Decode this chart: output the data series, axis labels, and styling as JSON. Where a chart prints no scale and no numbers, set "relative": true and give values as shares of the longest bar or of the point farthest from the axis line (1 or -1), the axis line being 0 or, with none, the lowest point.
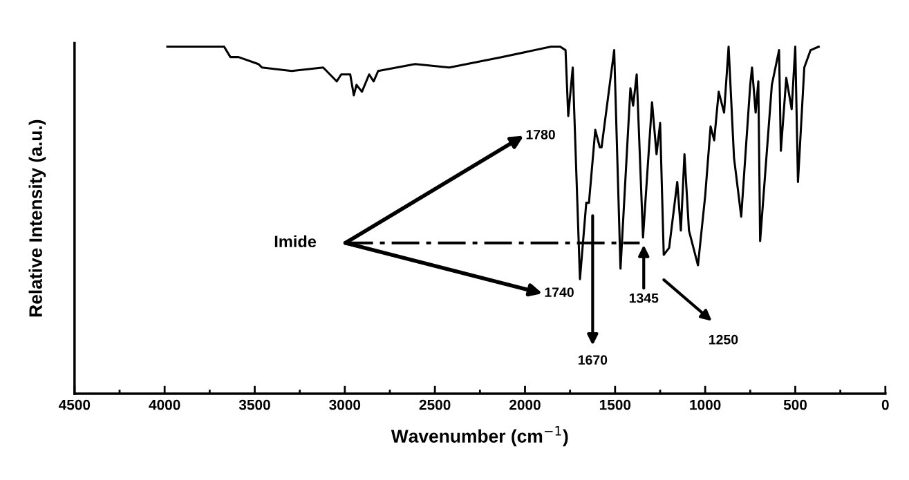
{
  "chart_data": {
    "type": "line",
    "relative": true,
    "xlabel": "Wavenumber (cm$^{−1}$)",
    "ylabel": "Relative Intensity (a.u.)",
    "xlim": [
      4500,
      0
    ],
    "xticks": [
      4500,
      4000,
      3500,
      3000,
      2500,
      2000,
      1500,
      1000,
      500,
      0
    ],
    "grid": false,
    "marker": "none",
    "line_style": "solid",
    "x": [
      3985,
      3670,
      3635,
      3590,
      3480,
      3460,
      3295,
      3120,
      3045,
      3020,
      2970,
      2950,
      2935,
      2905,
      2865,
      2840,
      2815,
      2610,
      2420,
      2130,
      1855,
      1805,
      1775,
      1760,
      1735,
      1695,
      1660,
      1645,
      1610,
      1585,
      1575,
      1505,
      1470,
      1415,
      1400,
      1380,
      1345,
      1295,
      1270,
      1250,
      1230,
      1200,
      1155,
      1135,
      1115,
      1090,
      1040,
      1000,
      970,
      950,
      925,
      895,
      870,
      840,
      800,
      750,
      740,
      720,
      705,
      695,
      630,
      590,
      580,
      550,
      520,
      500,
      485,
      450,
      415,
      370
    ],
    "series": [
      {
        "color": "#000000",
        "values": [
          1.0,
          1.0,
          0.97,
          0.97,
          0.95,
          0.94,
          0.93,
          0.94,
          0.9,
          0.92,
          0.92,
          0.86,
          0.89,
          0.87,
          0.92,
          0.9,
          0.93,
          0.95,
          0.94,
          0.97,
          1.0,
          1.0,
          0.99,
          0.8,
          0.94,
          0.33,
          0.55,
          0.55,
          0.76,
          0.71,
          0.71,
          0.99,
          0.36,
          0.88,
          0.83,
          0.92,
          0.45,
          0.84,
          0.69,
          0.78,
          0.4,
          0.42,
          0.61,
          0.47,
          0.69,
          0.47,
          0.37,
          0.57,
          0.77,
          0.73,
          0.87,
          0.81,
          1.0,
          0.68,
          0.51,
          0.89,
          0.94,
          0.81,
          0.9,
          0.44,
          0.89,
          0.99,
          0.7,
          0.91,
          0.82,
          1.0,
          0.61,
          0.94,
          0.99,
          1.0
        ]
      }
    ],
    "annotations": [
      "Imide",
      "1780",
      "1740",
      "1670",
      "1345",
      "1250"
    ]
  }
}
